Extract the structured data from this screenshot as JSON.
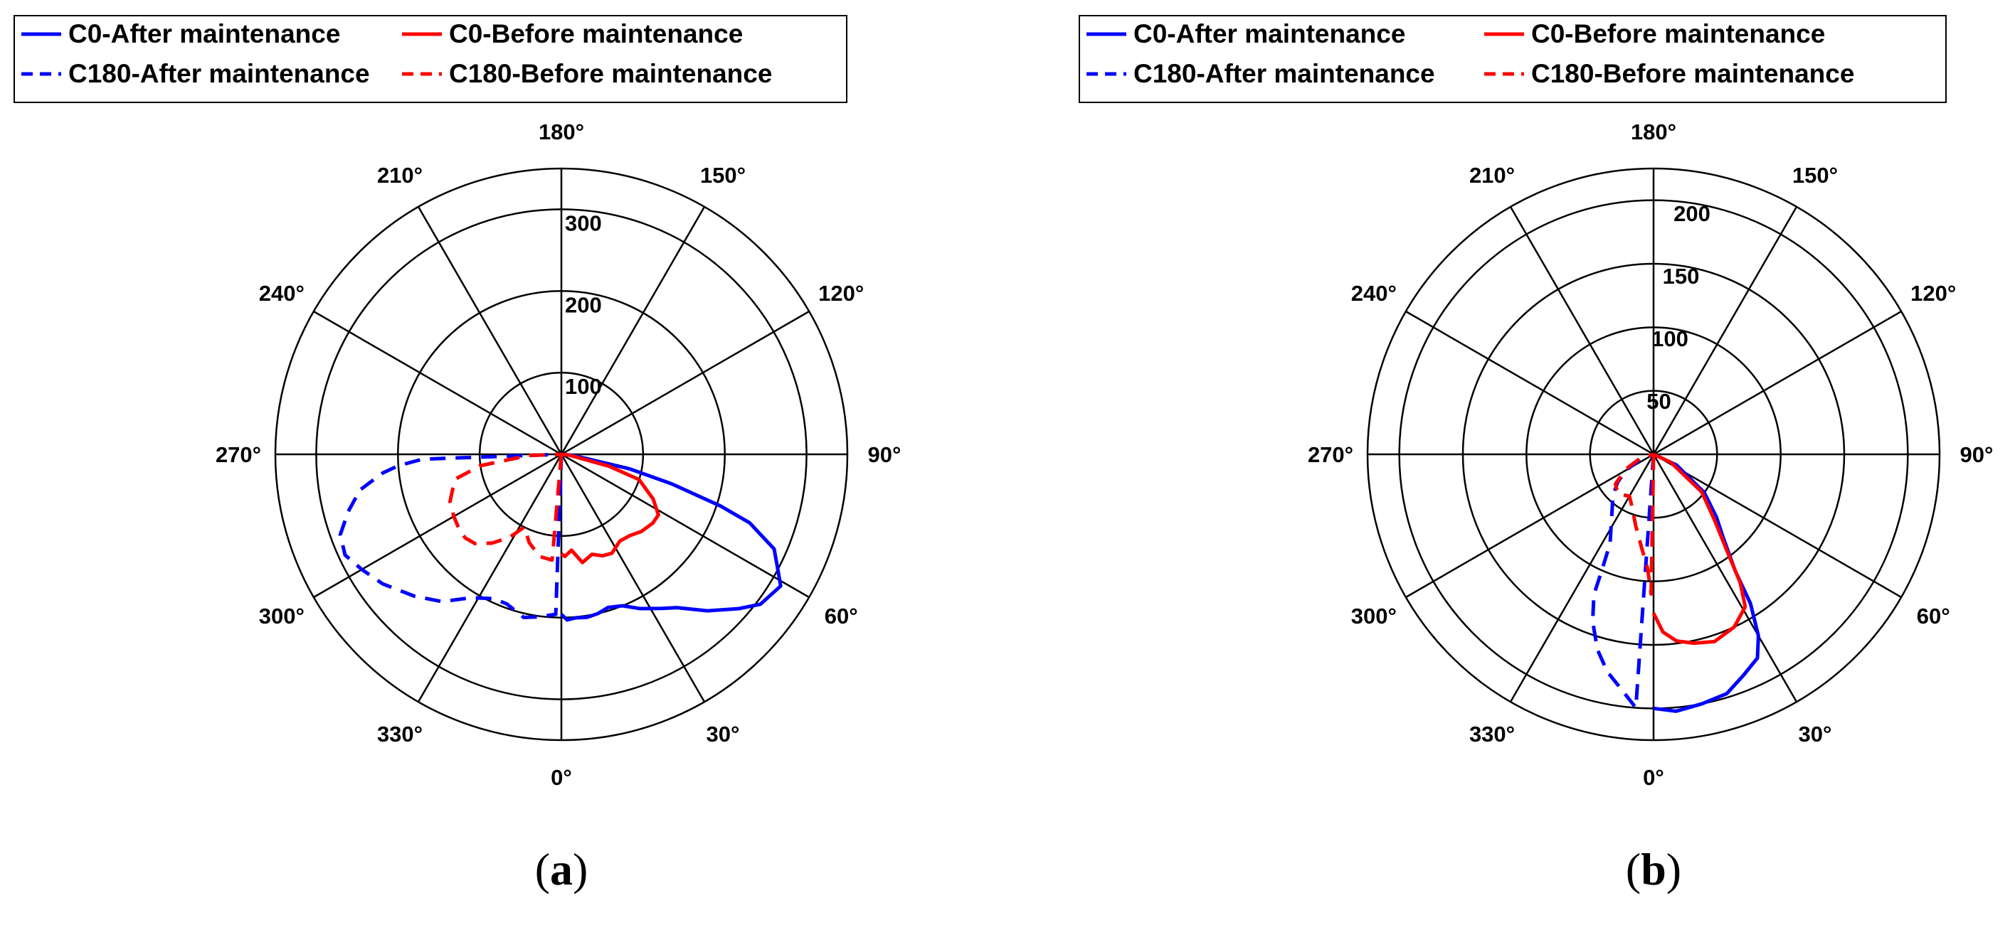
{
  "chart_data": [
    {
      "type": "polar_line",
      "caption": {
        "open": "(",
        "letter": "a",
        "close": ")"
      },
      "theta_ticks": [
        "0°",
        "30°",
        "60°",
        "90°",
        "120°",
        "150°",
        "180°",
        "210°",
        "240°",
        "270°",
        "300°",
        "330°"
      ],
      "r_ticks": [
        "100",
        "200",
        "300"
      ],
      "rlim": [
        0,
        350
      ],
      "grid": true,
      "legend_position": "top",
      "series": [
        {
          "name": "C0-After maintenance",
          "color": "#0000ff",
          "dash": "solid",
          "points": [
            [
              0,
              0
            ],
            [
              85,
              14
            ],
            [
              78,
              85
            ],
            [
              75,
              140
            ],
            [
              72,
              205
            ],
            [
              70,
              245
            ],
            [
              66,
              285
            ],
            [
              62,
              300
            ],
            [
              59,
              313
            ],
            [
              53,
              305
            ],
            [
              49,
              288
            ],
            [
              43,
              262
            ],
            [
              37,
              235
            ],
            [
              33,
              225
            ],
            [
              27,
              212
            ],
            [
              22,
              200
            ],
            [
              17,
              196
            ],
            [
              13,
              200
            ],
            [
              9,
              202
            ],
            [
              5,
              201
            ],
            [
              2,
              203
            ],
            [
              0,
              196
            ]
          ]
        },
        {
          "name": "C0-Before maintenance",
          "color": "#ff0000",
          "dash": "solid",
          "points": [
            [
              0,
              0
            ],
            [
              84,
              10
            ],
            [
              76,
              60
            ],
            [
              72,
              100
            ],
            [
              64,
              125
            ],
            [
              58,
              140
            ],
            [
              53,
              140
            ],
            [
              46,
              136
            ],
            [
              40,
              130
            ],
            [
              34,
              128
            ],
            [
              27,
              136
            ],
            [
              22,
              134
            ],
            [
              17,
              128
            ],
            [
              11,
              135
            ],
            [
              6,
              118
            ],
            [
              2,
              125
            ],
            [
              0,
              122
            ]
          ]
        },
        {
          "name": "C180-After maintenance",
          "color": "#0000ff",
          "dash": "dashed",
          "points": [
            [
              360,
              0
            ],
            [
              358,
              196
            ],
            [
              352,
              201
            ],
            [
              347,
              205
            ],
            [
              340,
              195
            ],
            [
              335,
              195
            ],
            [
              328,
              207
            ],
            [
              321,
              232
            ],
            [
              314,
              250
            ],
            [
              306,
              270
            ],
            [
              300,
              282
            ],
            [
              295,
              292
            ],
            [
              290,
              288
            ],
            [
              285,
              270
            ],
            [
              280,
              250
            ],
            [
              276,
              220
            ],
            [
              274,
              200
            ],
            [
              272,
              170
            ],
            [
              270,
              0
            ]
          ]
        },
        {
          "name": "C180-Before maintenance",
          "color": "#ff0000",
          "dash": "dashed",
          "points": [
            [
              360,
              0
            ],
            [
              355,
              130
            ],
            [
              348,
              128
            ],
            [
              340,
              115
            ],
            [
              333,
              100
            ],
            [
              328,
              120
            ],
            [
              322,
              138
            ],
            [
              316,
              152
            ],
            [
              311,
              156
            ],
            [
              306,
              155
            ],
            [
              300,
              152
            ],
            [
              293,
              148
            ],
            [
              288,
              140
            ],
            [
              283,
              132
            ],
            [
              278,
              100
            ],
            [
              272,
              40
            ],
            [
              270,
              0
            ]
          ]
        }
      ]
    },
    {
      "type": "polar_line",
      "caption": {
        "open": "(",
        "letter": "b",
        "close": ")"
      },
      "theta_ticks": [
        "0°",
        "30°",
        "60°",
        "90°",
        "120°",
        "150°",
        "180°",
        "210°",
        "240°",
        "270°",
        "300°",
        "330°"
      ],
      "r_ticks": [
        "50",
        "100",
        "150",
        "200"
      ],
      "rlim": [
        0,
        225
      ],
      "grid": true,
      "legend_position": "top",
      "series": [
        {
          "name": "C0-After maintenance",
          "color": "#0000ff",
          "dash": "solid",
          "points": [
            [
              0,
              0
            ],
            [
              65,
              20
            ],
            [
              53,
              50
            ],
            [
              45,
              70
            ],
            [
              40,
              85
            ],
            [
              35,
              112
            ],
            [
              33,
              140
            ],
            [
              30,
              165
            ],
            [
              27,
              180
            ],
            [
              22,
              188
            ],
            [
              17,
              197
            ],
            [
              11,
              200
            ],
            [
              5,
              203
            ],
            [
              0,
              200
            ]
          ]
        },
        {
          "name": "C0-Before maintenance",
          "color": "#ff0000",
          "dash": "solid",
          "points": [
            [
              0,
              0
            ],
            [
              65,
              15
            ],
            [
              52,
              48
            ],
            [
              43,
              70
            ],
            [
              37,
              97
            ],
            [
              34,
              122
            ],
            [
              31,
              140
            ],
            [
              25,
              150
            ],
            [
              18,
              155
            ],
            [
              12,
              152
            ],
            [
              7,
              148
            ],
            [
              3,
              140
            ],
            [
              0,
              125
            ]
          ]
        },
        {
          "name": "C180-After maintenance",
          "color": "#0000ff",
          "dash": "dashed",
          "points": [
            [
              360,
              0
            ],
            [
              356,
              200
            ],
            [
              352,
              186
            ],
            [
              348,
              175
            ],
            [
              344,
              160
            ],
            [
              340,
              140
            ],
            [
              337,
              120
            ],
            [
              336,
              100
            ],
            [
              334,
              78
            ],
            [
              316,
              46
            ],
            [
              308,
              36
            ],
            [
              300,
              25
            ],
            [
              290,
              10
            ],
            [
              270,
              0
            ]
          ]
        },
        {
          "name": "C180-Before maintenance",
          "color": "#ff0000",
          "dash": "dashed",
          "points": [
            [
              360,
              0
            ],
            [
              359,
              110
            ],
            [
              357,
              90
            ],
            [
              353,
              75
            ],
            [
              346,
              58
            ],
            [
              338,
              45
            ],
            [
              330,
              38
            ],
            [
              318,
              42
            ],
            [
              308,
              38
            ],
            [
              298,
              25
            ],
            [
              285,
              10
            ],
            [
              270,
              0
            ]
          ]
        }
      ]
    }
  ]
}
